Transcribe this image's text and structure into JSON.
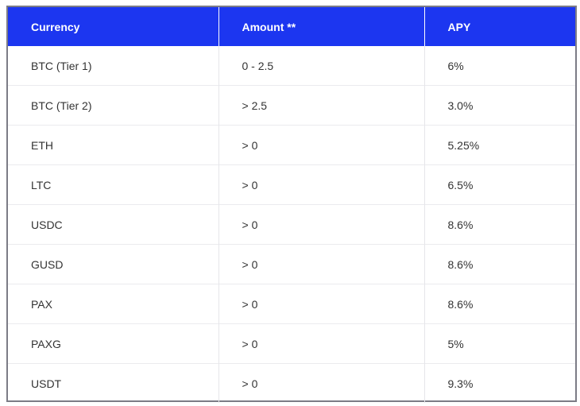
{
  "table": {
    "headers": [
      "Currency",
      "Amount **",
      "APY"
    ],
    "rows": [
      [
        "BTC (Tier 1)",
        "0 - 2.5",
        "6%"
      ],
      [
        "BTC (Tier 2)",
        "> 2.5",
        "3.0%"
      ],
      [
        "ETH",
        "> 0",
        "5.25%"
      ],
      [
        "LTC",
        "> 0",
        "6.5%"
      ],
      [
        "USDC",
        "> 0",
        "8.6%"
      ],
      [
        "GUSD",
        "> 0",
        "8.6%"
      ],
      [
        "PAX",
        "> 0",
        "8.6%"
      ],
      [
        "PAXG",
        "> 0",
        "5%"
      ],
      [
        "USDT",
        "> 0",
        "9.3%"
      ]
    ]
  },
  "colors": {
    "header_bg": "#1c36f0",
    "header_text": "#ffffff",
    "body_text": "#333333",
    "frame_border": "#7c7c86"
  }
}
